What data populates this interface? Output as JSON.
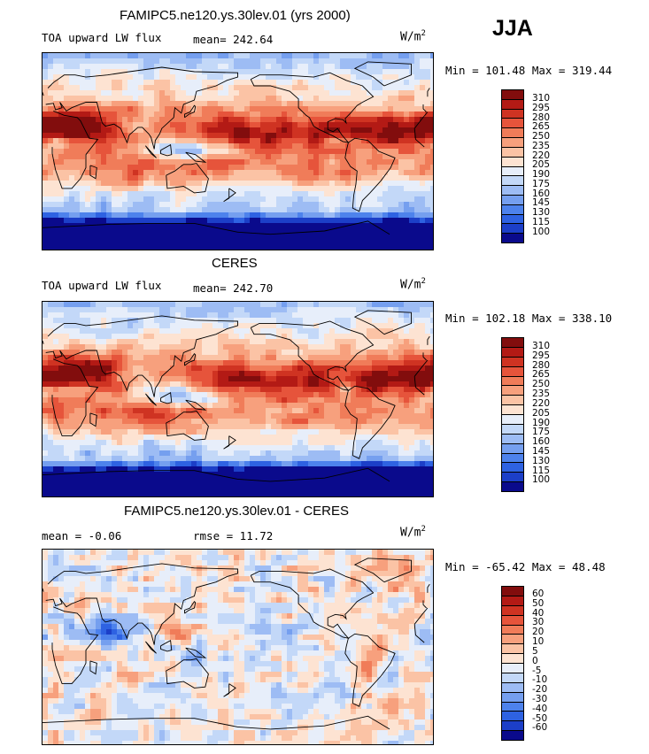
{
  "season": "JJA",
  "panels": [
    {
      "title": "FAMIPC5.ne120.ys.30lev.01 (yrs 2000)",
      "left_label": "TOA upward LW flux",
      "mid_label": "mean= 242.64",
      "units_base": "W/m",
      "units_exp": "2",
      "minmax": "Min = 101.48 Max = 319.44",
      "colorbar_labels": [
        "310",
        "295",
        "280",
        "265",
        "250",
        "235",
        "220",
        "205",
        "190",
        "175",
        "160",
        "145",
        "130",
        "115",
        "100"
      ],
      "field": "model"
    },
    {
      "title": "CERES",
      "left_label": "TOA upward LW flux",
      "mid_label": "mean= 242.70",
      "units_base": "W/m",
      "units_exp": "2",
      "minmax": "Min = 102.18 Max = 338.10",
      "colorbar_labels": [
        "310",
        "295",
        "280",
        "265",
        "250",
        "235",
        "220",
        "205",
        "190",
        "175",
        "160",
        "145",
        "130",
        "115",
        "100"
      ],
      "field": "obs"
    },
    {
      "title": "FAMIPC5.ne120.ys.30lev.01 - CERES",
      "left_label": "mean =  -0.06",
      "mid_label": "rmse =  11.72",
      "units_base": "W/m",
      "units_exp": "2",
      "minmax": "Min = -65.42 Max =  48.48",
      "colorbar_labels": [
        "60",
        "50",
        "40",
        "30",
        "20",
        "10",
        "5",
        "0",
        "-5",
        "-10",
        "-20",
        "-30",
        "-40",
        "-50",
        "-60"
      ],
      "field": "diff"
    }
  ],
  "palette": [
    "#0a0a8c",
    "#1c3fc8",
    "#2e62e2",
    "#4d82ec",
    "#759fef",
    "#9dbcf4",
    "#c3d8f8",
    "#e7eefa",
    "#fde3d2",
    "#fbc3a5",
    "#f7a07d",
    "#f07c59",
    "#e6543b",
    "#cf3322",
    "#b31a15",
    "#820d0d"
  ]
}
